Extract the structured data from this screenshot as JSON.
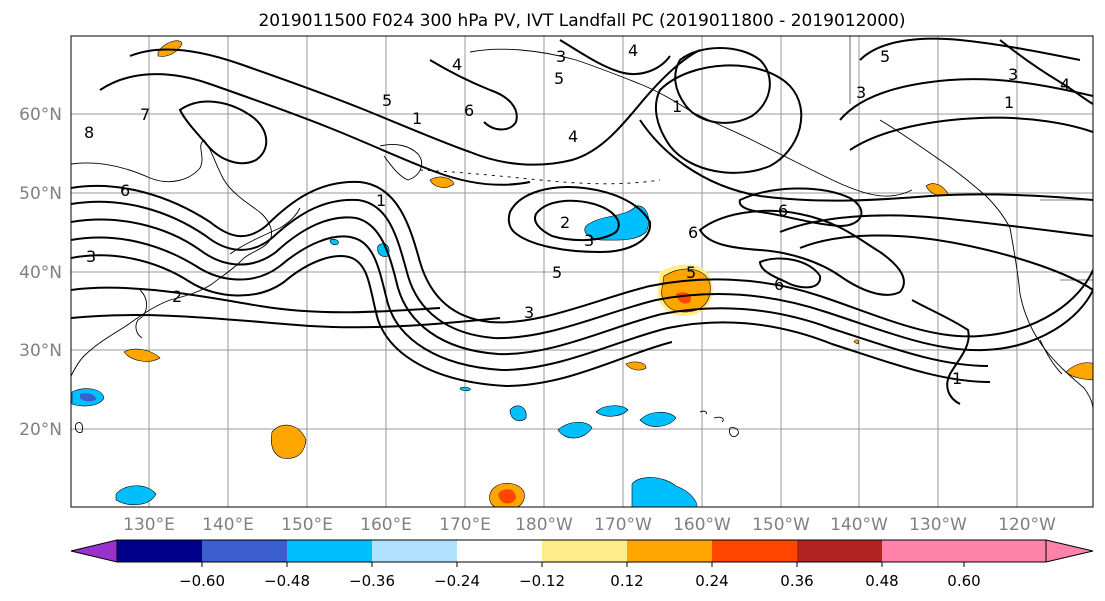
{
  "title": "2019011500 F024 300 hPa PV, IVT Landfall PC (2019011800 - 2019012000)",
  "axes": {
    "lat_labels": [
      "60°N",
      "50°N",
      "40°N",
      "30°N",
      "20°N"
    ],
    "lon_labels": [
      "130°E",
      "140°E",
      "150°E",
      "160°E",
      "170°E",
      "180°W",
      "170°W",
      "160°W",
      "150°W",
      "140°W",
      "130°W",
      "120°W"
    ],
    "tick_label_color": "#808080",
    "grid_color": "#999999"
  },
  "colorbar": {
    "tick_labels": [
      "−0.60",
      "−0.48",
      "−0.36",
      "−0.24",
      "−0.12",
      "0.12",
      "0.24",
      "0.36",
      "0.48",
      "0.60"
    ],
    "colors": [
      "#9932CC",
      "#00008B",
      "#3A5FCD",
      "#00BFFF",
      "#B0E2FF",
      "#FFFFFF",
      "#FFEC8B",
      "#FFA500",
      "#FF4500",
      "#B22222",
      "#FF82AB"
    ]
  },
  "contour_labels": {
    "west": [
      "8",
      "7",
      "6",
      "3",
      "2",
      "1"
    ],
    "north": [
      "3",
      "4",
      "5",
      "6",
      "5",
      "4",
      "1"
    ],
    "center": [
      "2",
      "3",
      "4",
      "5",
      "1",
      "3",
      "6",
      "5",
      "6",
      "6"
    ],
    "east": [
      "5",
      "3",
      "4",
      "3",
      "1",
      "1"
    ]
  },
  "fills": {
    "positive_light": "#FFEC8B",
    "positive_mid": "#FFA500",
    "positive_strong": "#FF4500",
    "negative_mid": "#00BFFF",
    "negative_light": "#B0E2FF",
    "negative_strong": "#3A5FCD"
  }
}
